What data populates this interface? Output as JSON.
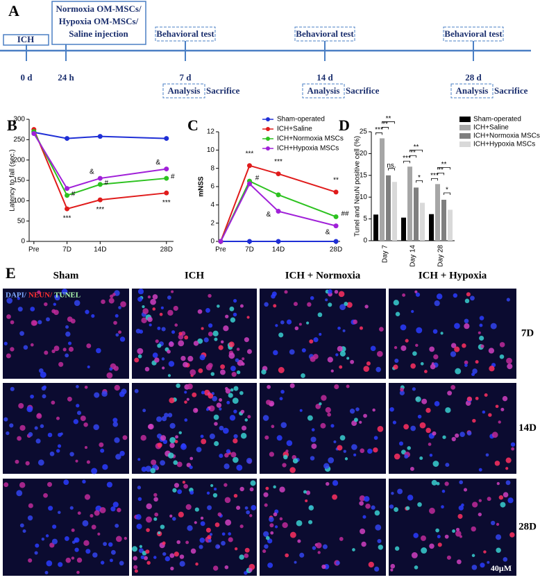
{
  "panel_labels": [
    "A",
    "B",
    "C",
    "D",
    "E"
  ],
  "timeline": {
    "ich": "ICH",
    "injection": [
      "Normoxia OM-MSCs/",
      "Hypoxia OM-MSCs/",
      "Saline injection"
    ],
    "events": [
      {
        "time": "0 d"
      },
      {
        "time": "24 h"
      },
      {
        "time": "7 d",
        "test": "Behavioral test",
        "analysis": "Analysis",
        "end": "Sacrifice"
      },
      {
        "time": "14 d",
        "test": "Behavioral test",
        "analysis": "Analysis",
        "end": "Sacrifice"
      },
      {
        "time": "28 d",
        "test": "Behavioral test",
        "analysis": "Analysis",
        "end": "Sacrifice"
      }
    ]
  },
  "chart_data": [
    {
      "type": "line",
      "y_label": "Latency to fall (sec.)",
      "x": [
        0,
        7,
        14,
        28
      ],
      "xlim": [
        -1,
        29.5
      ],
      "xticks": [
        {
          "value": 0,
          "label": "Pre"
        },
        {
          "value": 7,
          "label": "7D"
        },
        {
          "value": 14,
          "label": "14D"
        },
        {
          "value": 28,
          "label": "28D"
        }
      ],
      "ylim": [
        0,
        300
      ],
      "yticks": [
        0,
        50,
        100,
        150,
        200,
        250,
        300
      ],
      "series": [
        {
          "color": "#1f2fd6",
          "values": [
            268,
            253,
            258,
            253
          ]
        },
        {
          "color": "#e01b1b",
          "values": [
            275,
            80,
            102,
            119
          ]
        },
        {
          "color": "#2cc21f",
          "values": [
            270,
            113,
            140,
            155
          ]
        },
        {
          "color": "#a020d8",
          "values": [
            265,
            130,
            155,
            178
          ]
        }
      ],
      "annotations": [
        "#",
        "***",
        "&",
        "#",
        "***",
        "&",
        "#",
        "***"
      ]
    },
    {
      "type": "line",
      "y_label": "mNSS",
      "x": [
        0,
        7,
        14,
        28
      ],
      "xlim": [
        -0.5,
        29
      ],
      "xticks": [
        {
          "value": 0,
          "label": "Pre"
        },
        {
          "value": 7,
          "label": "7D"
        },
        {
          "value": 14,
          "label": "14D"
        },
        {
          "value": 28,
          "label": "28D"
        }
      ],
      "ylim": [
        0,
        12
      ],
      "yticks": [
        0,
        2,
        4,
        6,
        8,
        10,
        12
      ],
      "series": [
        {
          "name": "Sham-operated",
          "color": "#1f2fd6",
          "values": [
            0,
            0,
            0,
            0
          ]
        },
        {
          "name": "ICH+Saline",
          "color": "#e01b1b",
          "values": [
            0,
            8.3,
            7.4,
            5.4
          ]
        },
        {
          "name": "ICH+Normoxia MSCs",
          "color": "#2cc21f",
          "values": [
            0,
            6.6,
            5.1,
            2.7
          ]
        },
        {
          "name": "ICH+Hypoxia MSCs",
          "color": "#a020d8",
          "values": [
            0,
            6.3,
            3.3,
            1.7
          ]
        }
      ],
      "annotations": [
        "***",
        "#",
        "***",
        "&",
        "**",
        "##",
        "&"
      ]
    },
    {
      "type": "bar",
      "y_label": "Tunel and NeuN positive cell (%)",
      "categories": [
        "Day 7",
        "Day 14",
        "Day 28"
      ],
      "ylim": [
        0,
        25
      ],
      "yticks": [
        0,
        5,
        10,
        15,
        20,
        25
      ],
      "series": [
        {
          "name": "Sham-operated",
          "color": "#000000",
          "values": [
            6,
            5.3,
            6.1
          ]
        },
        {
          "name": "ICH+Saline",
          "color": "#a6a6a6",
          "values": [
            23.5,
            17,
            13
          ]
        },
        {
          "name": "ICH+Normoxia MSCs",
          "color": "#7f7f7f",
          "values": [
            15,
            12.2,
            9.4
          ]
        },
        {
          "name": "ICH+Hypoxia MSCs",
          "color": "#d9d9d9",
          "values": [
            13.5,
            8.7,
            7.1
          ]
        }
      ],
      "annotations": [
        "***",
        "**",
        "**",
        "ns.",
        "***",
        "**",
        "**",
        "*",
        "***",
        "**",
        "**",
        "*"
      ]
    }
  ],
  "micrographs": {
    "columns": [
      "Sham",
      "ICH",
      "ICH + Normoxia",
      "ICH + Hypoxia"
    ],
    "rows": [
      "7D",
      "14D",
      "28D"
    ],
    "stain": [
      "DAPI/",
      "NEUN/",
      "TUNEL"
    ],
    "scale_bar": "40μM"
  }
}
